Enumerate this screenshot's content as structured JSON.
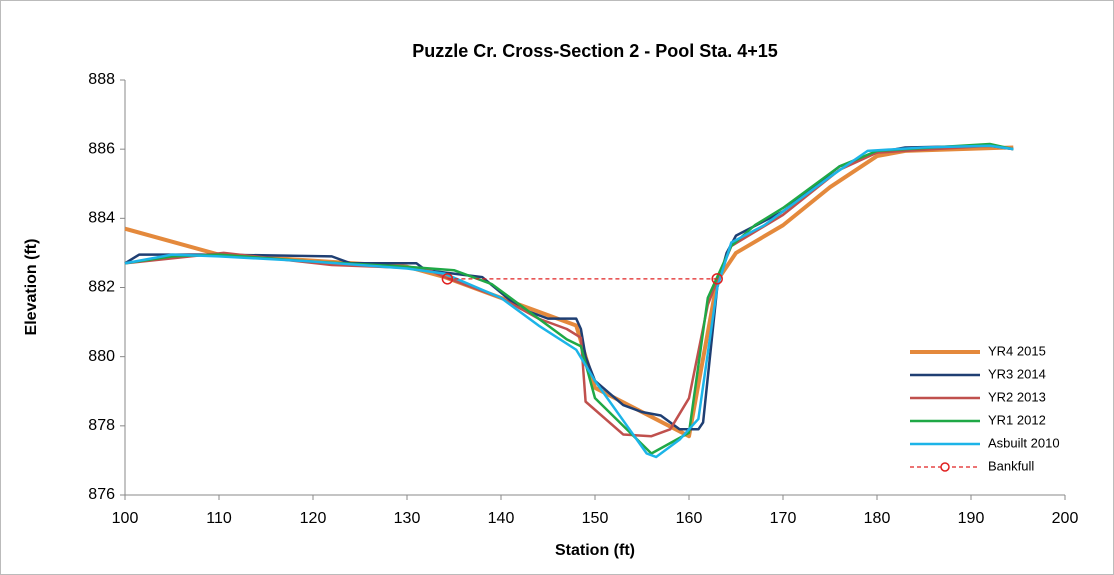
{
  "chart_data": {
    "type": "line",
    "title": "Puzzle Cr. Cross-Section 2 - Pool Sta. 4+15",
    "x_label": "Station (ft)",
    "y_label": "Elevation (ft)",
    "xlim": [
      100,
      200
    ],
    "xticks": [
      100,
      110,
      120,
      130,
      140,
      150,
      160,
      170,
      180,
      190,
      200
    ],
    "ylim": [
      876,
      888
    ],
    "yticks": [
      876,
      878,
      880,
      882,
      884,
      886,
      888
    ],
    "grid": false,
    "legend": "lower-right",
    "series": [
      {
        "name": "YR4 2015",
        "color": "#e4893c",
        "width": 4,
        "x": [
          100,
          110,
          130,
          134,
          140,
          148,
          150,
          160,
          163,
          165,
          170,
          175,
          180,
          183,
          194.5
        ],
        "values": [
          883.7,
          882.95,
          882.6,
          882.3,
          881.7,
          880.9,
          879.1,
          877.7,
          882.2,
          883.0,
          883.8,
          884.9,
          885.8,
          885.95,
          886.05
        ]
      },
      {
        "name": "YR3 2014",
        "color": "#1f3f73",
        "width": 2.5,
        "x": [
          100,
          101.5,
          110,
          122,
          124,
          131,
          132,
          138,
          142,
          145,
          148,
          148.5,
          149,
          150,
          153,
          155,
          157,
          159,
          161,
          161.5,
          163,
          164,
          165,
          170,
          176,
          180,
          183,
          192,
          194.5
        ],
        "values": [
          882.7,
          882.95,
          882.95,
          882.9,
          882.7,
          882.7,
          882.5,
          882.3,
          881.4,
          881.1,
          881.1,
          880.8,
          880.0,
          879.3,
          878.6,
          878.4,
          878.3,
          877.9,
          877.9,
          878.1,
          882.0,
          883.0,
          883.5,
          884.2,
          885.5,
          885.9,
          886.05,
          886.1,
          886.0
        ]
      },
      {
        "name": "YR2 2013",
        "color": "#c0504d",
        "width": 2.5,
        "x": [
          100,
          110.5,
          122,
          132,
          134,
          140,
          144,
          147,
          148.5,
          149,
          153,
          156,
          158,
          160,
          162,
          163,
          164.5,
          170,
          176,
          180,
          192,
          194.5
        ],
        "values": [
          882.7,
          883.0,
          882.65,
          882.55,
          882.3,
          881.7,
          881.1,
          880.8,
          880.55,
          878.7,
          877.75,
          877.7,
          877.9,
          878.8,
          881.5,
          882.2,
          883.2,
          884.1,
          885.4,
          885.9,
          886.1,
          886.0
        ]
      },
      {
        "name": "YR1 2012",
        "color": "#1fa846",
        "width": 2.5,
        "x": [
          100,
          105,
          110,
          120,
          130,
          135,
          139,
          143,
          147,
          148.5,
          150,
          156,
          160,
          162,
          163,
          164.5,
          167,
          170,
          176,
          180,
          192,
          194.5
        ],
        "values": [
          882.7,
          882.9,
          882.95,
          882.75,
          882.6,
          882.5,
          882.1,
          881.3,
          880.5,
          880.3,
          878.8,
          877.2,
          877.8,
          881.7,
          882.3,
          883.2,
          883.8,
          884.3,
          885.5,
          885.95,
          886.15,
          886.0
        ]
      },
      {
        "name": "Asbuilt 2010",
        "color": "#1cb4e8",
        "width": 2.5,
        "x": [
          100,
          105,
          110,
          120,
          130,
          134,
          140,
          144,
          148,
          150,
          155.5,
          156.5,
          159,
          161,
          163,
          164.5,
          168,
          175,
          179,
          185,
          192,
          194.5
        ],
        "values": [
          882.7,
          882.95,
          882.9,
          882.75,
          882.55,
          882.4,
          881.7,
          880.9,
          880.2,
          879.3,
          877.2,
          877.1,
          877.6,
          878.2,
          882.0,
          883.3,
          883.8,
          885.2,
          885.95,
          886.05,
          886.1,
          886.0
        ]
      },
      {
        "name": "Bankfull",
        "color": "#e02020",
        "width": 1.2,
        "dashed": true,
        "marker": "circle-open",
        "x": [
          134.3,
          163
        ],
        "values": [
          882.25,
          882.25
        ]
      }
    ]
  }
}
